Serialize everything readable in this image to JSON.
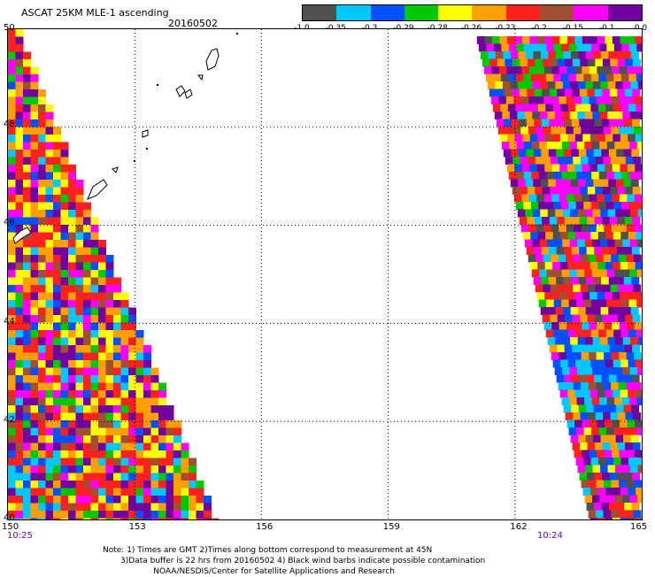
{
  "header": {
    "title": "ASCAT 25KM MLE-1 ascending",
    "date": "20160502"
  },
  "legend": {
    "colors": [
      "#505050",
      "#00c8ff",
      "#0050ff",
      "#00c800",
      "#ffff00",
      "#ffa000",
      "#ff2020",
      "#a05030",
      "#ff00ff",
      "#7000a0"
    ],
    "labels": [
      "-1.0",
      "-0.35",
      "-0.3",
      "-0.29",
      "-0.28",
      "-0.26",
      "-0.23",
      "-0.2",
      "-0.15",
      "-0.1",
      "0.0"
    ]
  },
  "axes": {
    "lon_ticks": [
      "150",
      "153",
      "156",
      "159",
      "162",
      "165"
    ],
    "lat_ticks": [
      "50",
      "48",
      "46",
      "44",
      "42",
      "40"
    ],
    "lon_range": [
      150,
      165
    ],
    "lat_range": [
      40,
      50
    ]
  },
  "times": {
    "left": "10:25",
    "right": "10:24"
  },
  "notes": [
    "Note: 1) Times are GMT 2)Times along bottom correspond to measurement at 45N",
    "       3)Data buffer is 22 hrs from 20160502 4) Black wind barbs indicate possible contamination",
    "                    NOAA/NESDIS/Center for Satellite Applications and Research"
  ]
}
